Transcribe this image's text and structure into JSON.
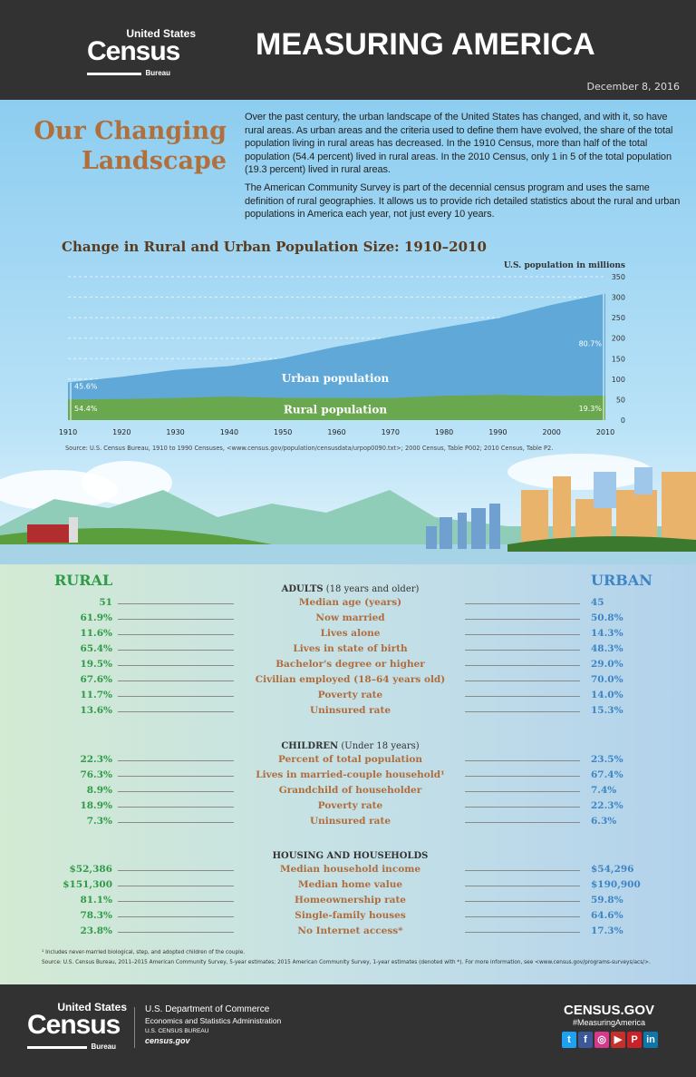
{
  "header": {
    "logo_top": "United States",
    "logo_main": "Census",
    "logo_sub": "Bureau",
    "title": "MEASURING AMERICA",
    "date": "December 8, 2016"
  },
  "intro": {
    "heading_line1": "Our Changing",
    "heading_line2": "Landscape",
    "p1": "Over the past century, the urban landscape of the United States has changed, and with it, so have rural areas. As urban areas and the criteria used to define them have evolved, the share of the total population living in rural areas has decreased. In the 1910 Census, more than half of the total population (54.4 percent) lived in rural areas. In the 2010 Census, only 1 in 5 of the total population (19.3 percent) lived in rural areas.",
    "p2": "The American Community Survey is part of the decennial census program and uses the same definition of rural geographies. It allows us to provide rich detailed statistics about the rural and urban populations in America each year, not just every 10 years."
  },
  "chart_data": {
    "type": "area",
    "title": "Change in Rural and Urban Population Size: 1910–2010",
    "ylabel": "U.S. population in millions",
    "xlabel": "",
    "x": [
      1910,
      1920,
      1930,
      1940,
      1950,
      1960,
      1970,
      1980,
      1990,
      2000,
      2010
    ],
    "ylim": [
      0,
      350
    ],
    "yticks": [
      0,
      50,
      100,
      150,
      200,
      250,
      300,
      350
    ],
    "stacked": true,
    "grid": "horizontal-dashed",
    "series": [
      {
        "name": "Rural population",
        "color": "#6aa84f",
        "values": [
          50.2,
          51.6,
          54.0,
          57.5,
          54.2,
          54.1,
          53.6,
          59.5,
          61.7,
          59.1,
          59.5
        ]
      },
      {
        "name": "Urban population",
        "color": "#5fa8d8",
        "values": [
          42.0,
          54.1,
          68.8,
          74.2,
          97.1,
          125.2,
          149.6,
          167.0,
          187.0,
          222.3,
          249.2
        ]
      }
    ],
    "annotations": {
      "urban_1910": "45.6%",
      "rural_1910": "54.4%",
      "urban_2010": "80.7%",
      "rural_2010": "19.3%"
    },
    "source": "Source: U.S. Census Bureau, 1910 to 1990 Censuses, <www.census.gov/population/censusdata/urpop0090.txt>; 2000 Census, Table P002; 2010 Census, Table P2."
  },
  "stats": {
    "rural_label": "RURAL",
    "urban_label": "URBAN",
    "sections": [
      {
        "title": "ADULTS",
        "subtitle": " (18 years and older)",
        "rows": [
          [
            "51",
            "Median age (years)",
            "45"
          ],
          [
            "61.9%",
            "Now married",
            "50.8%"
          ],
          [
            "11.6%",
            "Lives alone",
            "14.3%"
          ],
          [
            "65.4%",
            "Lives in state of birth",
            "48.3%"
          ],
          [
            "19.5%",
            "Bachelor's degree or higher",
            "29.0%"
          ],
          [
            "67.6%",
            "Civilian employed (18–64 years old)",
            "70.0%"
          ],
          [
            "11.7%",
            "Poverty rate",
            "14.0%"
          ],
          [
            "13.6%",
            "Uninsured rate",
            "15.3%"
          ]
        ]
      },
      {
        "title": "CHILDREN",
        "subtitle": " (Under 18 years)",
        "rows": [
          [
            "22.3%",
            "Percent of total population",
            "23.5%"
          ],
          [
            "76.3%",
            "Lives in married-couple household¹",
            "67.4%"
          ],
          [
            "8.9%",
            "Grandchild of householder",
            "7.4%"
          ],
          [
            "18.9%",
            "Poverty rate",
            "22.3%"
          ],
          [
            "7.3%",
            "Uninsured rate",
            "6.3%"
          ]
        ]
      },
      {
        "title": "HOUSING AND HOUSEHOLDS",
        "subtitle": "",
        "rows": [
          [
            "$52,386",
            "Median household income",
            "$54,296"
          ],
          [
            "$151,300",
            "Median home value",
            "$190,900"
          ],
          [
            "81.1%",
            "Homeownership rate",
            "59.8%"
          ],
          [
            "78.3%",
            "Single-family houses",
            "64.6%"
          ],
          [
            "23.8%",
            "No Internet access*",
            "17.3%"
          ]
        ]
      }
    ],
    "footnote": "¹ Includes never-married biological, step, and adopted children of the couple.",
    "source": "Source: U.S. Census Bureau, 2011–2015 American Community Survey, 5-year estimates; 2015 American Community Survey, 1-year estimates (denoted with *). For more information, see <www.census.gov/programs-surveys/acs/>."
  },
  "footer": {
    "dept": "U.S. Department of Commerce",
    "admin": "Economics and Statistics Administration",
    "bureau": "U.S. CENSUS BUREAU",
    "site": "census.gov",
    "census_gov": "CENSUS.GOV",
    "hashtag": "#MeasuringAmerica",
    "social": [
      {
        "icon": "twitter-icon",
        "glyph": "t",
        "color": "#1da1f2"
      },
      {
        "icon": "facebook-icon",
        "glyph": "f",
        "color": "#3b5998"
      },
      {
        "icon": "instagram-icon",
        "glyph": "◎",
        "color": "#d6388a"
      },
      {
        "icon": "youtube-icon",
        "glyph": "▶",
        "color": "#c4302b"
      },
      {
        "icon": "pinterest-icon",
        "glyph": "P",
        "color": "#cb2027"
      },
      {
        "icon": "linkedin-icon",
        "glyph": "in",
        "color": "#0e76a8"
      }
    ]
  }
}
